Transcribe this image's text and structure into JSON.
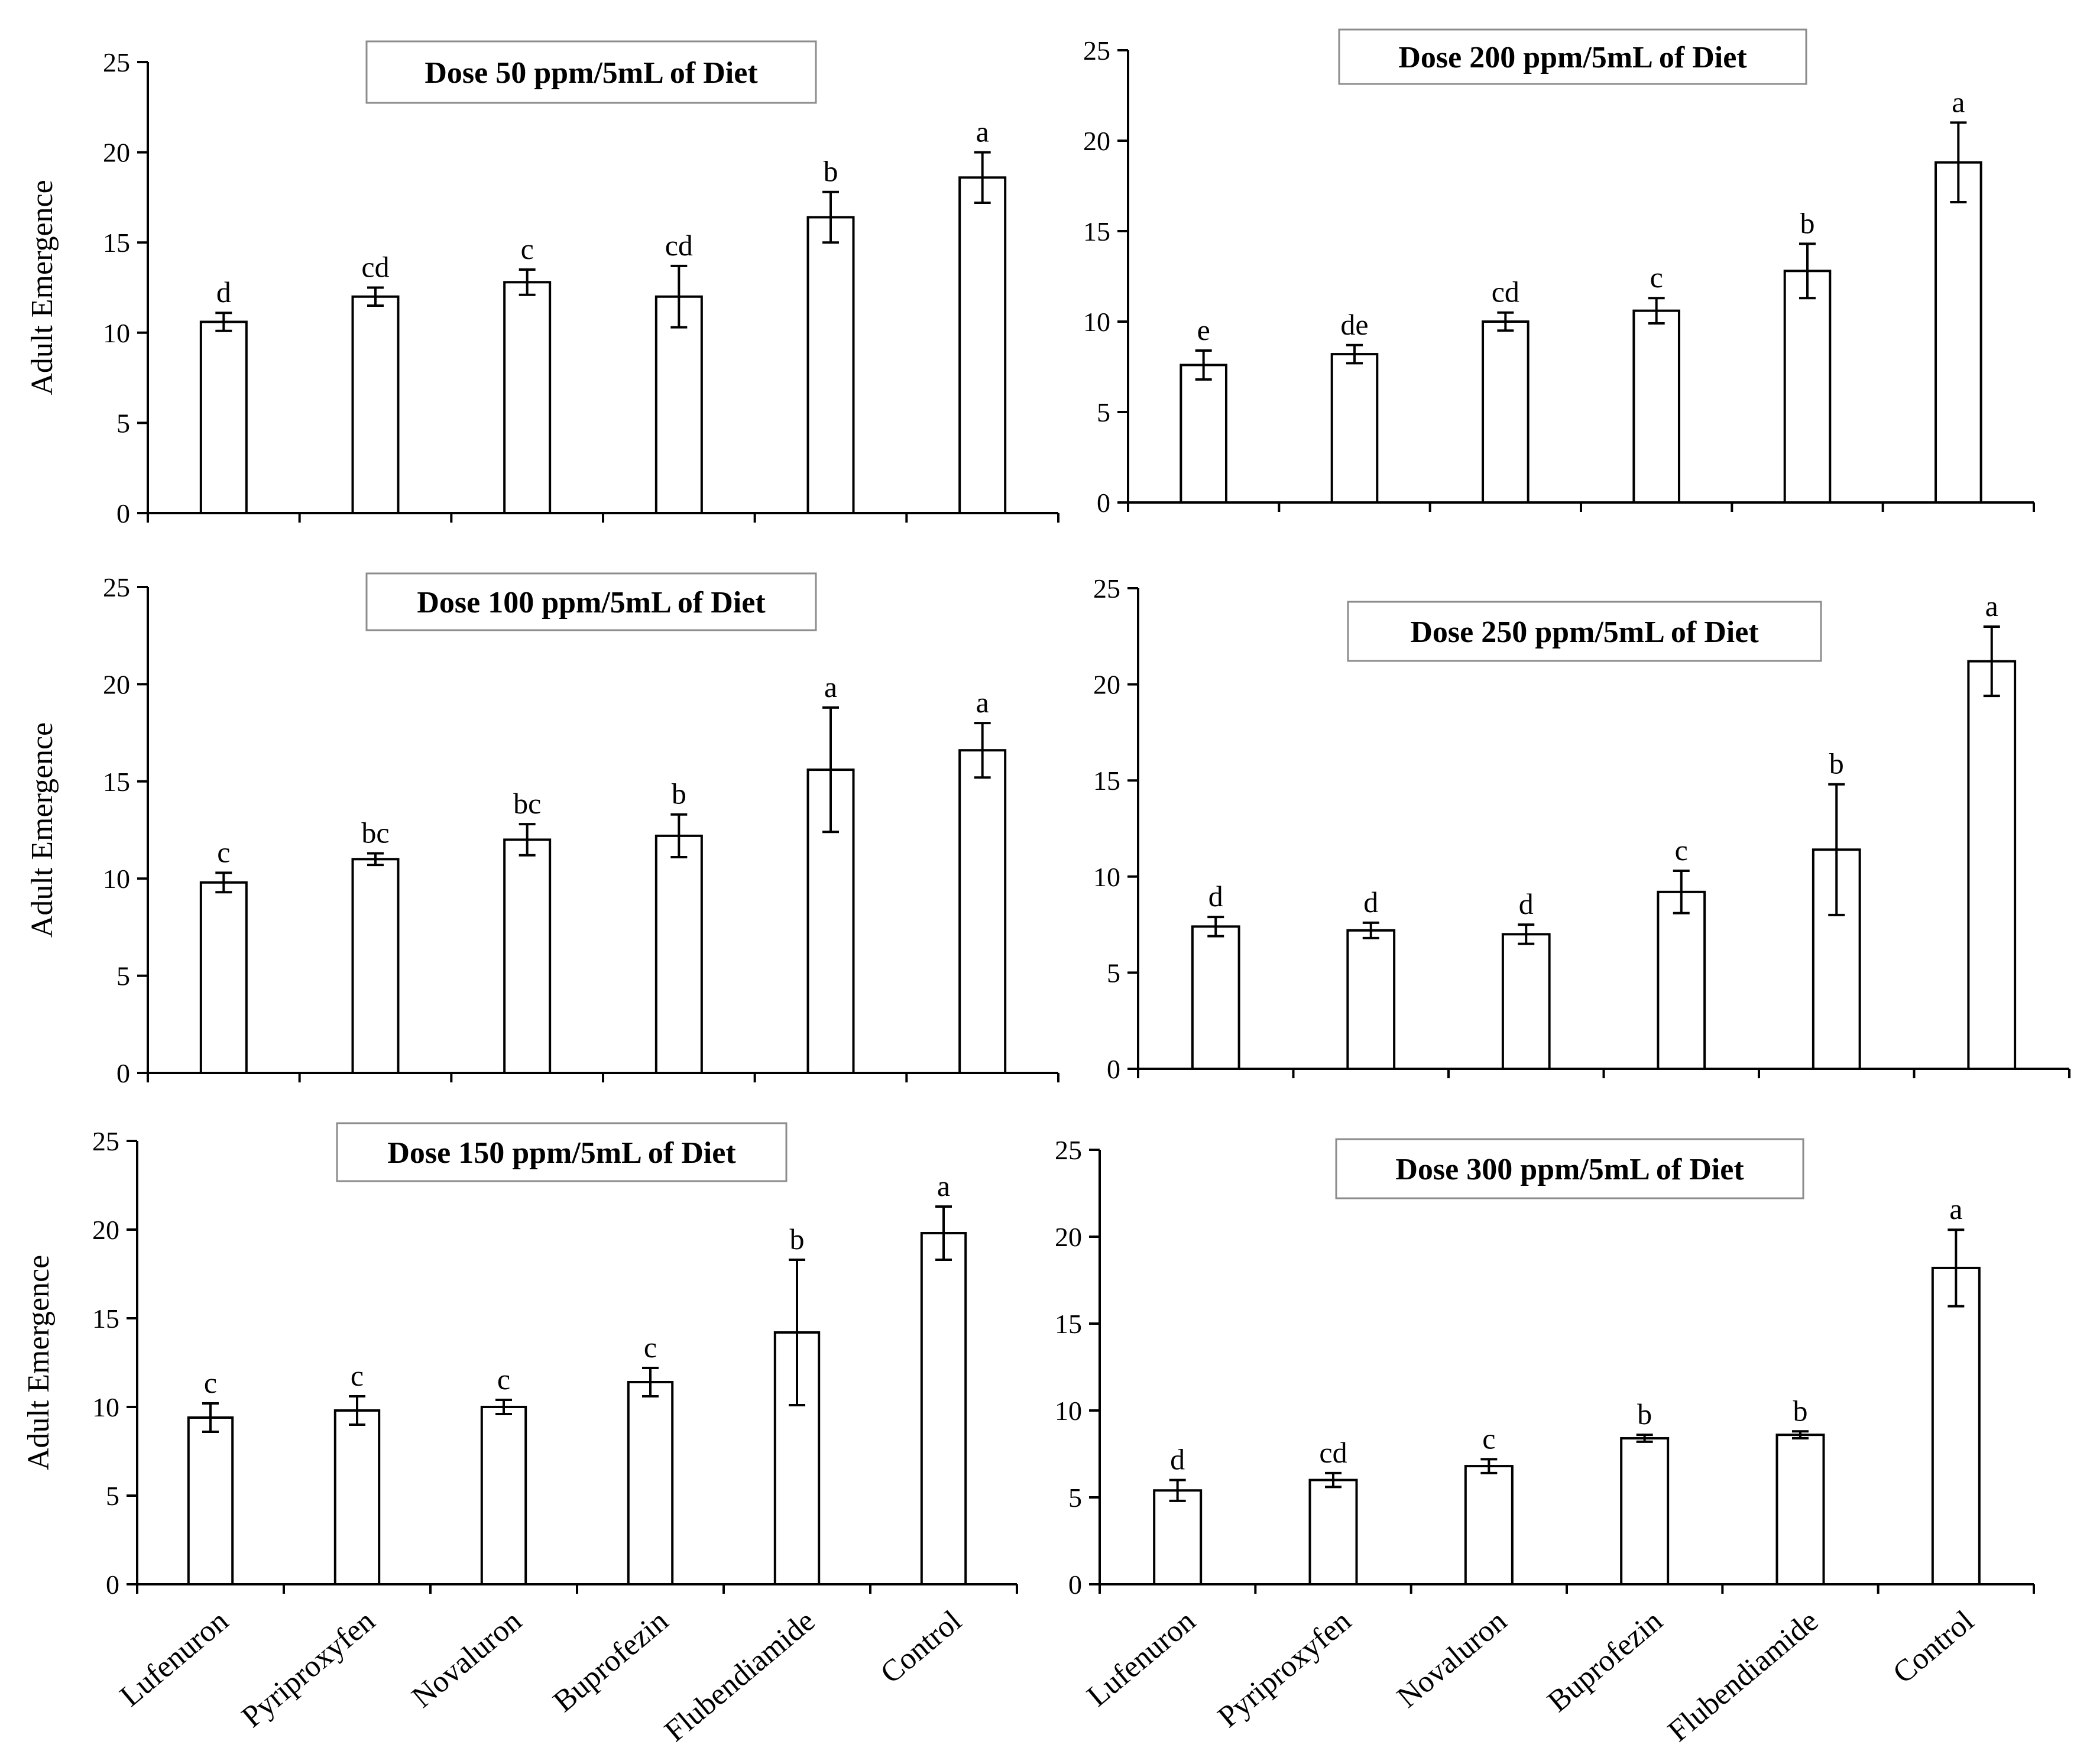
{
  "chart_data": [
    {
      "type": "bar",
      "title": "Dose 50 ppm/5mL of Diet",
      "ylabel": "Adult Emergence",
      "xlabel": "",
      "ylim": [
        0,
        25
      ],
      "yticks": [
        "0",
        "5",
        "10",
        "15",
        "20",
        "25"
      ],
      "categories": [
        "Lufenuron",
        "Pyriproxyfen",
        "Novaluron",
        "Buprofezin",
        "Flubendiamide",
        "Control"
      ],
      "values": [
        10.6,
        12.0,
        12.8,
        12.0,
        16.4,
        18.6
      ],
      "errors": [
        0.5,
        0.5,
        0.7,
        1.7,
        1.4,
        1.4
      ],
      "letters": [
        "d",
        "cd",
        "c",
        "cd",
        "b",
        "a"
      ]
    },
    {
      "type": "bar",
      "title": "Dose 200 ppm/5mL of Diet",
      "ylabel": "",
      "xlabel": "",
      "ylim": [
        0,
        25
      ],
      "yticks": [
        "0",
        "5",
        "10",
        "15",
        "20",
        "25"
      ],
      "categories": [
        "Lufenuron",
        "Pyriproxyfen",
        "Novaluron",
        "Buprofezin",
        "Flubendiamide",
        "Control"
      ],
      "values": [
        7.6,
        8.2,
        10.0,
        10.6,
        12.8,
        18.8
      ],
      "errors": [
        0.8,
        0.5,
        0.5,
        0.7,
        1.5,
        2.2
      ],
      "letters": [
        "e",
        "de",
        "cd",
        "c",
        "b",
        "a"
      ]
    },
    {
      "type": "bar",
      "title": "Dose 100 ppm/5mL of Diet",
      "ylabel": "Adult Emergence",
      "xlabel": "",
      "ylim": [
        0,
        25
      ],
      "yticks": [
        "0",
        "5",
        "10",
        "15",
        "20",
        "25"
      ],
      "categories": [
        "Lufenuron",
        "Pyriproxyfen",
        "Novaluron",
        "Buprofezin",
        "Flubendiamide",
        "Control"
      ],
      "values": [
        9.8,
        11.0,
        12.0,
        12.2,
        15.6,
        16.6
      ],
      "errors": [
        0.5,
        0.3,
        0.8,
        1.1,
        3.2,
        1.4
      ],
      "letters": [
        "c",
        "bc",
        "bc",
        "b",
        "a",
        "a"
      ]
    },
    {
      "type": "bar",
      "title": "Dose 250 ppm/5mL of Diet",
      "ylabel": "",
      "xlabel": "",
      "ylim": [
        0,
        25
      ],
      "yticks": [
        "0",
        "5",
        "10",
        "15",
        "20",
        "25"
      ],
      "categories": [
        "Lufenuron",
        "Pyriproxyfen",
        "Novaluron",
        "Buprofezin",
        "Flubendiamide",
        "Control"
      ],
      "values": [
        7.4,
        7.2,
        7.0,
        9.2,
        11.4,
        21.2
      ],
      "errors": [
        0.5,
        0.4,
        0.5,
        1.1,
        3.4,
        1.8
      ],
      "letters": [
        "d",
        "d",
        "d",
        "c",
        "b",
        "a"
      ]
    },
    {
      "type": "bar",
      "title": "Dose 150 ppm/5mL of Diet",
      "ylabel": "Adult Emergence",
      "xlabel": "",
      "ylim": [
        0,
        25
      ],
      "yticks": [
        "0",
        "5",
        "10",
        "15",
        "20",
        "25"
      ],
      "categories": [
        "Lufenuron",
        "Pyriproxyfen",
        "Novaluron",
        "Buprofezin",
        "Flubendiamide",
        "Control"
      ],
      "values": [
        9.4,
        9.8,
        10.0,
        11.4,
        14.2,
        19.8
      ],
      "errors": [
        0.8,
        0.8,
        0.4,
        0.8,
        4.1,
        1.5
      ],
      "letters": [
        "c",
        "c",
        "c",
        "c",
        "b",
        "a"
      ]
    },
    {
      "type": "bar",
      "title": "Dose 300 ppm/5mL of Diet",
      "ylabel": "",
      "xlabel": "",
      "ylim": [
        0,
        25
      ],
      "yticks": [
        "0",
        "5",
        "10",
        "15",
        "20",
        "25"
      ],
      "categories": [
        "Lufenuron",
        "Pyriproxyfen",
        "Novaluron",
        "Buprofezin",
        "Flubendiamide",
        "Control"
      ],
      "values": [
        5.4,
        6.0,
        6.8,
        8.4,
        8.6,
        18.2
      ],
      "errors": [
        0.6,
        0.4,
        0.4,
        0.2,
        0.2,
        2.2
      ],
      "letters": [
        "d",
        "cd",
        "c",
        "b",
        "b",
        "a"
      ]
    }
  ]
}
